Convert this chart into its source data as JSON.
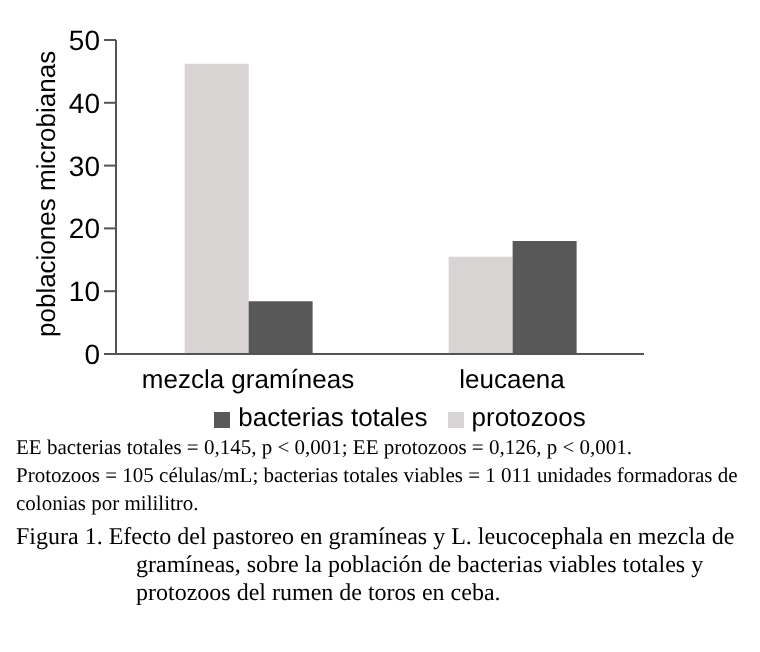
{
  "chart_data": {
    "type": "bar",
    "ylabel": "poblaciones microbianas",
    "categories": [
      "mezcla gramíneas",
      "leucaena"
    ],
    "series": [
      {
        "name": "protozoos",
        "color": "#d9d4d4",
        "values": [
          46.2,
          15.5
        ]
      },
      {
        "name": "bacterias totales",
        "color": "#585858",
        "values": [
          8.4,
          18
        ]
      }
    ],
    "ylim": [
      0,
      50
    ],
    "yticks": [
      0,
      10,
      20,
      30,
      40,
      50
    ],
    "grid": false,
    "legend": "bottom",
    "annotations": [
      "EE bacterias totales = 0,145, p < 0,001; EE protozoos = 0,126, p < 0,001.",
      "Protozoos = 105 células/mL; bacterias totales viables = 1 011 unidades formadoras de colonias por mililitro.",
      "Figura 1. Efecto del pastoreo en gramíneas y L. leucocephala en mezcla de gramíneas, sobre la población de bacterias viables totales y protozoos del rumen de toros en ceba."
    ]
  }
}
